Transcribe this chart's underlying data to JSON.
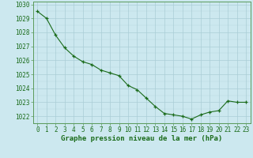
{
  "x": [
    0,
    1,
    2,
    3,
    4,
    5,
    6,
    7,
    8,
    9,
    10,
    11,
    12,
    13,
    14,
    15,
    16,
    17,
    18,
    19,
    20,
    21,
    22,
    23
  ],
  "y": [
    1029.5,
    1029.0,
    1027.8,
    1026.9,
    1026.3,
    1025.9,
    1025.7,
    1025.3,
    1025.1,
    1024.9,
    1024.2,
    1023.9,
    1023.3,
    1022.7,
    1022.2,
    1022.1,
    1022.0,
    1021.8,
    1022.1,
    1022.3,
    1022.4,
    1023.1,
    1023.0,
    1023.0
  ],
  "ylim": [
    1021.5,
    1030.2
  ],
  "yticks": [
    1022,
    1023,
    1024,
    1025,
    1026,
    1027,
    1028,
    1029,
    1030
  ],
  "xticks": [
    0,
    1,
    2,
    3,
    4,
    5,
    6,
    7,
    8,
    9,
    10,
    11,
    12,
    13,
    14,
    15,
    16,
    17,
    18,
    19,
    20,
    21,
    22,
    23
  ],
  "xlabel": "Graphe pression niveau de la mer (hPa)",
  "line_color": "#1a6b1a",
  "marker": "+",
  "bg_color": "#cce8ef",
  "grid_color_major": "#aacdd6",
  "tick_label_color": "#1a6b1a",
  "xlabel_color": "#1a6b1a",
  "xlabel_fontsize": 6.5,
  "tick_fontsize": 5.5,
  "border_color": "#2d7a2d",
  "spine_color": "#5a9a5a"
}
